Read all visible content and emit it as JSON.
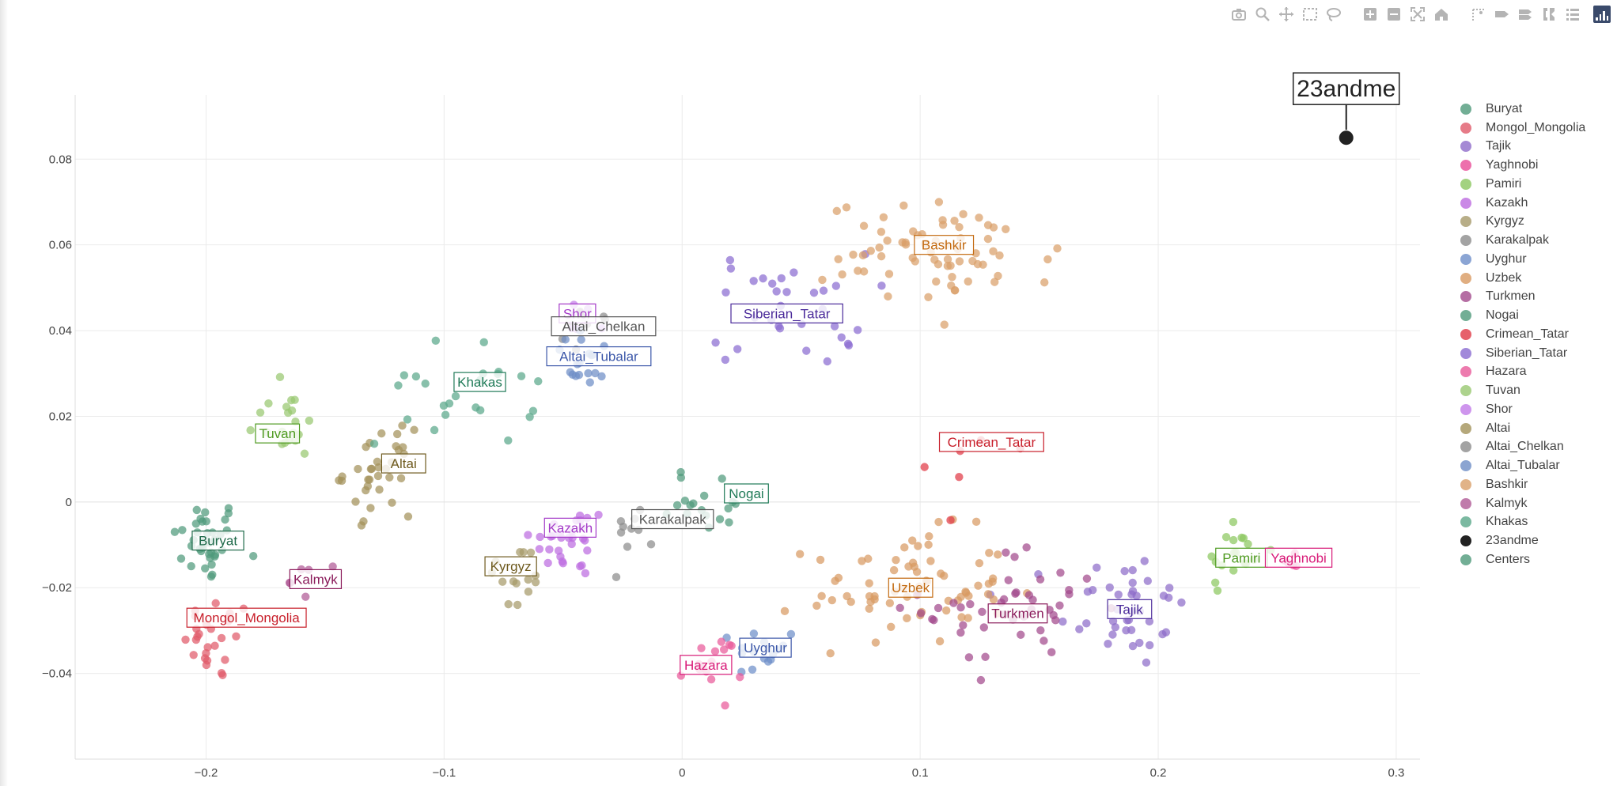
{
  "modebar": {
    "buttons": [
      {
        "name": "camera-icon",
        "glyph": "camera"
      },
      {
        "name": "zoom-icon",
        "glyph": "zoom"
      },
      {
        "name": "pan-icon",
        "glyph": "pan"
      },
      {
        "name": "box-select-icon",
        "glyph": "box"
      },
      {
        "name": "lasso-select-icon",
        "glyph": "lasso"
      },
      {
        "name": "zoom-in-icon",
        "glyph": "plus"
      },
      {
        "name": "zoom-out-icon",
        "glyph": "minus"
      },
      {
        "name": "autoscale-icon",
        "glyph": "autoscale"
      },
      {
        "name": "reset-axes-icon",
        "glyph": "home"
      },
      {
        "name": "spike-lines-icon",
        "glyph": "spike"
      },
      {
        "name": "hover-closest-icon",
        "glyph": "tag"
      },
      {
        "name": "hover-compare-icon",
        "glyph": "tags"
      },
      {
        "name": "toggle-spike-icon",
        "glyph": "bracket"
      },
      {
        "name": "compare-data-icon",
        "glyph": "list"
      }
    ]
  },
  "chart_data": {
    "type": "scatter",
    "title": "",
    "xlabel": "",
    "ylabel": "",
    "xlim": [
      -0.255,
      0.31
    ],
    "ylim": [
      -0.06,
      0.095
    ],
    "x_ticks": [
      -0.2,
      -0.1,
      0,
      0.1,
      0.2,
      0.3
    ],
    "x_tick_labels": [
      "−0.2",
      "−0.1",
      "0",
      "0.1",
      "0.2",
      "0.3"
    ],
    "y_ticks": [
      -0.04,
      -0.02,
      0,
      0.02,
      0.04,
      0.06,
      0.08
    ],
    "y_tick_labels": [
      "−0.04",
      "−0.02",
      "0",
      "0.02",
      "0.04",
      "0.06",
      "0.08"
    ],
    "grid": true,
    "legend_position": "right",
    "series": [
      {
        "name": "Buryat",
        "color": "#4f9a7b",
        "center": [
          -0.2,
          -0.009
        ],
        "spread": [
          0.013,
          0.009
        ],
        "n": 38
      },
      {
        "name": "Mongol_Mongolia",
        "color": "#e05a6a",
        "center": [
          -0.195,
          -0.032
        ],
        "spread": [
          0.013,
          0.009
        ],
        "n": 26
      },
      {
        "name": "Tajik",
        "color": "#8e6cc9",
        "center": [
          0.185,
          -0.025
        ],
        "spread": [
          0.025,
          0.013
        ],
        "n": 40
      },
      {
        "name": "Yaghnobi",
        "color": "#e84c97",
        "center": [
          0.255,
          -0.014
        ],
        "spread": [
          0.005,
          0.004
        ],
        "n": 5
      },
      {
        "name": "Pamiri",
        "color": "#8cc760",
        "center": [
          0.232,
          -0.012
        ],
        "spread": [
          0.012,
          0.009
        ],
        "n": 18
      },
      {
        "name": "Kazakh",
        "color": "#bd6ce0",
        "center": [
          -0.047,
          -0.009
        ],
        "spread": [
          0.015,
          0.008
        ],
        "n": 30
      },
      {
        "name": "Kyrgyz",
        "color": "#a69a6a",
        "center": [
          -0.07,
          -0.018
        ],
        "spread": [
          0.011,
          0.008
        ],
        "n": 14
      },
      {
        "name": "Karakalpak",
        "color": "#8c8c8c",
        "center": [
          -0.02,
          -0.006
        ],
        "spread": [
          0.009,
          0.005
        ],
        "n": 10
      },
      {
        "name": "Uyghur",
        "color": "#6e8fc9",
        "center": [
          0.035,
          -0.035
        ],
        "spread": [
          0.012,
          0.006
        ],
        "n": 16
      },
      {
        "name": "Uzbek",
        "color": "#d89a62",
        "center": [
          0.095,
          -0.02
        ],
        "spread": [
          0.038,
          0.012
        ],
        "n": 70
      },
      {
        "name": "Turkmen",
        "color": "#a24a8c",
        "center": [
          0.14,
          -0.025
        ],
        "spread": [
          0.035,
          0.013
        ],
        "n": 44
      },
      {
        "name": "Nogai",
        "color": "#4f9a7b",
        "center": [
          0.01,
          0.0
        ],
        "spread": [
          0.022,
          0.007
        ],
        "n": 18
      },
      {
        "name": "Crimean_Tatar",
        "color": "#e03a46",
        "center": [
          0.125,
          0.012
        ],
        "spread": [
          0.02,
          0.015
        ],
        "n": 6
      },
      {
        "name": "Siberian_Tatar",
        "color": "#8a6cd1",
        "center": [
          0.045,
          0.045
        ],
        "spread": [
          0.03,
          0.012
        ],
        "n": 32
      },
      {
        "name": "Hazara",
        "color": "#e95a9a",
        "center": [
          0.012,
          -0.038
        ],
        "spread": [
          0.012,
          0.006
        ],
        "n": 16
      },
      {
        "name": "Tuvan",
        "color": "#98c870",
        "center": [
          -0.168,
          0.018
        ],
        "spread": [
          0.014,
          0.008
        ],
        "n": 20
      },
      {
        "name": "Shor",
        "color": "#c27ae8",
        "center": [
          -0.043,
          0.043
        ],
        "spread": [
          0.006,
          0.004
        ],
        "n": 8
      },
      {
        "name": "Altai",
        "color": "#a3925a",
        "center": [
          -0.128,
          0.007
        ],
        "spread": [
          0.013,
          0.009
        ],
        "n": 34
      },
      {
        "name": "Altai_Chelkan",
        "color": "#8c8c8c",
        "center": [
          -0.04,
          0.04
        ],
        "spread": [
          0.008,
          0.005
        ],
        "n": 8
      },
      {
        "name": "Altai_Tubalar",
        "color": "#6e8dc6",
        "center": [
          -0.04,
          0.033
        ],
        "spread": [
          0.013,
          0.006
        ],
        "n": 18
      },
      {
        "name": "Bashkir",
        "color": "#d9a06a",
        "center": [
          0.11,
          0.058
        ],
        "spread": [
          0.045,
          0.011
        ],
        "n": 70
      },
      {
        "name": "Kalmyk",
        "color": "#b05a96",
        "center": [
          -0.16,
          -0.018
        ],
        "spread": [
          0.008,
          0.004
        ],
        "n": 6
      },
      {
        "name": "Khakas",
        "color": "#5aa88a",
        "center": [
          -0.095,
          0.025
        ],
        "spread": [
          0.03,
          0.011
        ],
        "n": 24
      },
      {
        "name": "23andme",
        "color": "#222222",
        "center": [
          0.279,
          0.085
        ],
        "spread": [
          0,
          0
        ],
        "n": 1
      },
      {
        "name": "Centers",
        "color": "#4f9a7b",
        "center": [
          0,
          0
        ],
        "spread": [
          0,
          0
        ],
        "n": 0
      }
    ],
    "center_labels": [
      {
        "text": "Bashkir",
        "x": 0.11,
        "y": 0.06,
        "color": "#c36a10"
      },
      {
        "text": "Siberian_Tatar",
        "x": 0.044,
        "y": 0.044,
        "color": "#4a2a9a"
      },
      {
        "text": "Shor",
        "x": -0.044,
        "y": 0.044,
        "color": "#a43ac8"
      },
      {
        "text": "Altai_Chelkan",
        "x": -0.033,
        "y": 0.041,
        "color": "#555555"
      },
      {
        "text": "Altai_Tubalar",
        "x": -0.035,
        "y": 0.034,
        "color": "#3a56a8"
      },
      {
        "text": "Khakas",
        "x": -0.085,
        "y": 0.028,
        "color": "#1f7a57"
      },
      {
        "text": "Tuvan",
        "x": -0.17,
        "y": 0.016,
        "color": "#4e9a20"
      },
      {
        "text": "Altai",
        "x": -0.117,
        "y": 0.009,
        "color": "#6e5a1e"
      },
      {
        "text": "Crimean_Tatar",
        "x": 0.13,
        "y": 0.014,
        "color": "#c81e2a"
      },
      {
        "text": "Nogai",
        "x": 0.027,
        "y": 0.002,
        "color": "#1f7a57"
      },
      {
        "text": "Karakalpak",
        "x": -0.004,
        "y": -0.004,
        "color": "#555555"
      },
      {
        "text": "Kazakh",
        "x": -0.047,
        "y": -0.006,
        "color": "#a43ac8"
      },
      {
        "text": "Buryat",
        "x": -0.195,
        "y": -0.009,
        "color": "#1f6a4a"
      },
      {
        "text": "Kyrgyz",
        "x": -0.072,
        "y": -0.015,
        "color": "#6e5a1e"
      },
      {
        "text": "Kalmyk",
        "x": -0.154,
        "y": -0.018,
        "color": "#8a1a5a"
      },
      {
        "text": "Uzbek",
        "x": 0.096,
        "y": -0.02,
        "color": "#c36a10"
      },
      {
        "text": "Pamiri",
        "x": 0.235,
        "y": -0.013,
        "color": "#4e9a20"
      },
      {
        "text": "Yaghnobi",
        "x": 0.259,
        "y": -0.013,
        "color": "#d81a78"
      },
      {
        "text": "Mongol_Mongolia",
        "x": -0.183,
        "y": -0.027,
        "color": "#c81e2a"
      },
      {
        "text": "Turkmen",
        "x": 0.141,
        "y": -0.026,
        "color": "#8a1a5a"
      },
      {
        "text": "Tajik",
        "x": 0.188,
        "y": -0.025,
        "color": "#4a2a9a"
      },
      {
        "text": "Uyghur",
        "x": 0.035,
        "y": -0.034,
        "color": "#3a56a8"
      },
      {
        "text": "Hazara",
        "x": 0.01,
        "y": -0.038,
        "color": "#d81a78"
      }
    ],
    "annotation": {
      "text": "23andme",
      "x": 0.279,
      "y": 0.085
    }
  }
}
